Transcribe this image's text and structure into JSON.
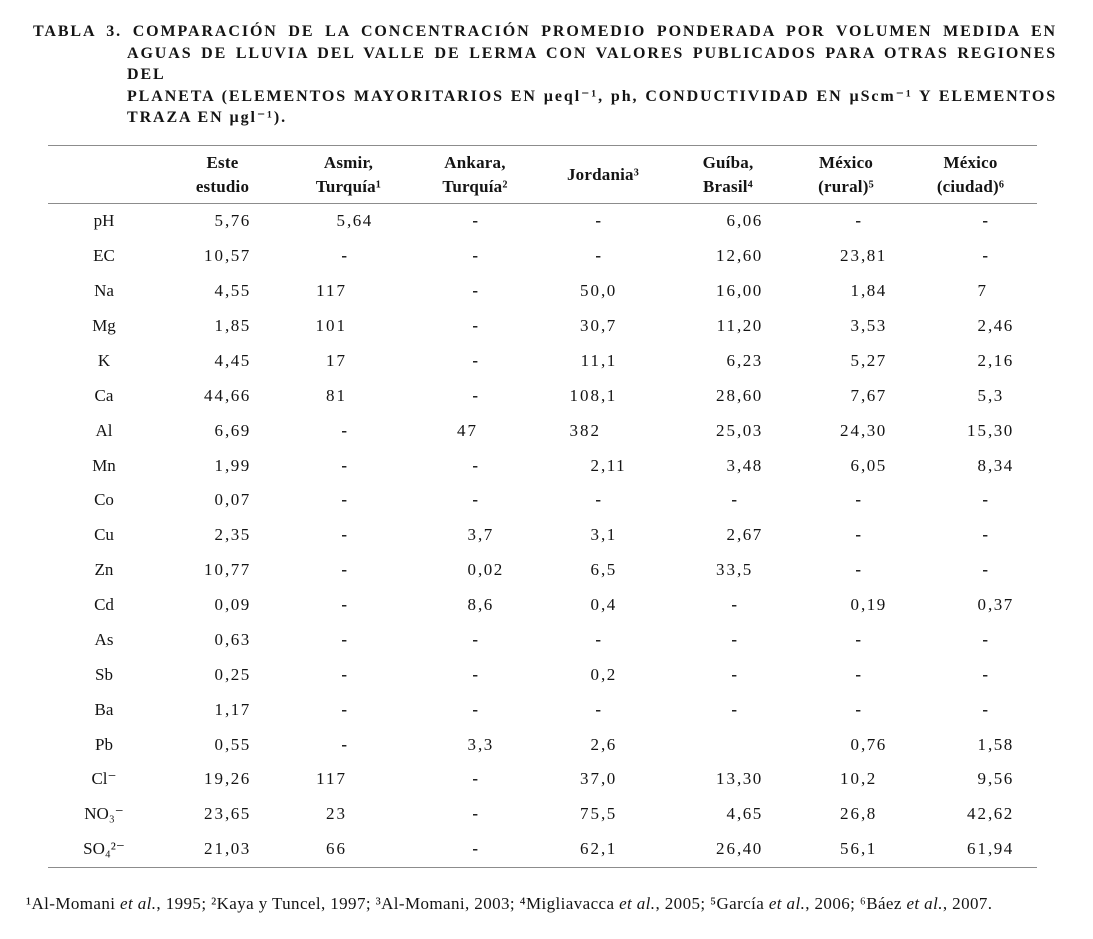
{
  "title": {
    "lines": [
      "TABLA 3. COMPARACIÓN DE LA CONCENTRACIÓN PROMEDIO PONDERADA POR VOLUMEN MEDIDA EN",
      "AGUAS DE LLUVIA DEL VALLE DE LERMA CON VALORES PUBLICADOS PARA OTRAS REGIONES DEL",
      "PLANETA (ELEMENTOS MAYORITARIOS EN µeql⁻¹, ph, CONDUCTIVIDAD EN µScm⁻¹ Y ELEMENTOS",
      "TRAZA EN µgl⁻¹)."
    ]
  },
  "table": {
    "columns": [
      {
        "lines": [
          "Este",
          "estudio"
        ]
      },
      {
        "lines": [
          "Asmir,",
          "Turquía¹"
        ]
      },
      {
        "lines": [
          "Ankara,",
          "Turquía²"
        ]
      },
      {
        "lines": [
          "Jordania³"
        ]
      },
      {
        "lines": [
          "Guíba,",
          "Brasil⁴"
        ]
      },
      {
        "lines": [
          "México",
          "(rural)⁵"
        ]
      },
      {
        "lines": [
          "México",
          "(ciudad)⁶"
        ]
      }
    ],
    "rows": [
      {
        "label": "pH",
        "values": [
          "5,76",
          "5,64",
          "-",
          "-",
          "6,06",
          "-",
          "-"
        ]
      },
      {
        "label": "EC",
        "values": [
          "10,57",
          "-",
          "-",
          "-",
          "12,60",
          "23,81",
          "-"
        ]
      },
      {
        "label": "Na",
        "values": [
          "4,55",
          "117",
          "-",
          "50,0",
          "16,00",
          "1,84",
          "7"
        ]
      },
      {
        "label": "Mg",
        "values": [
          "1,85",
          "101",
          "-",
          "30,7",
          "11,20",
          "3,53",
          "2,46"
        ]
      },
      {
        "label": "K",
        "values": [
          "4,45",
          "17",
          "-",
          "11,1",
          "6,23",
          "5,27",
          "2,16"
        ]
      },
      {
        "label": "Ca",
        "values": [
          "44,66",
          "81",
          "-",
          "108,1",
          "28,60",
          "7,67",
          "5,3"
        ]
      },
      {
        "label": "Al",
        "values": [
          "6,69",
          "-",
          "47",
          "382",
          "25,03",
          "24,30",
          "15,30"
        ]
      },
      {
        "label": "Mn",
        "values": [
          "1,99",
          "-",
          "-",
          "2,11",
          "3,48",
          "6,05",
          "8,34"
        ]
      },
      {
        "label": "Co",
        "values": [
          "0,07",
          "-",
          "-",
          "-",
          "-",
          "-",
          "-"
        ]
      },
      {
        "label": "Cu",
        "values": [
          "2,35",
          "-",
          "3,7",
          "3,1",
          "2,67",
          "-",
          "-"
        ]
      },
      {
        "label": "Zn",
        "values": [
          "10,77",
          "-",
          "0,02",
          "6,5",
          "33,5",
          "-",
          "-"
        ]
      },
      {
        "label": "Cd",
        "values": [
          "0,09",
          "-",
          "8,6",
          "0,4",
          "-",
          "0,19",
          "0,37"
        ]
      },
      {
        "label": "As",
        "values": [
          "0,63",
          "-",
          "-",
          "-",
          "-",
          "-",
          "-"
        ]
      },
      {
        "label": "Sb",
        "values": [
          "0,25",
          "-",
          "-",
          "0,2",
          "-",
          "-",
          "-"
        ]
      },
      {
        "label": "Ba",
        "values": [
          "1,17",
          "-",
          "-",
          "-",
          "-",
          "-",
          "-"
        ]
      },
      {
        "label": "Pb",
        "values": [
          "0,55",
          "-",
          "3,3",
          "2,6",
          "",
          "0,76",
          "1,58"
        ]
      },
      {
        "label": "Cl⁻",
        "values": [
          "19,26",
          "117",
          "-",
          "37,0",
          "13,30",
          "10,2",
          "9,56"
        ]
      },
      {
        "label": "NO₃⁻",
        "values": [
          "23,65",
          "23",
          "-",
          "75,5",
          "4,65",
          "26,8",
          "42,62"
        ]
      },
      {
        "label": "SO₄²⁻",
        "values": [
          "21,03",
          "66",
          "-",
          "62,1",
          "26,40",
          "56,1",
          "61,94"
        ]
      }
    ]
  },
  "footnote": {
    "parts": [
      {
        "text": "¹Al-Momani ",
        "italic": false
      },
      {
        "text": "et al.",
        "italic": true
      },
      {
        "text": ", 1995; ²Kaya y Tuncel, 1997; ³Al-Momani, 2003; ⁴Migliavacca ",
        "italic": false
      },
      {
        "text": "et al.",
        "italic": true
      },
      {
        "text": ", 2005; ⁵García ",
        "italic": false
      },
      {
        "text": "et al.",
        "italic": true
      },
      {
        "text": ", 2006; ⁶Báez ",
        "italic": false
      },
      {
        "text": "et al.",
        "italic": true
      },
      {
        "text": ", 2007.",
        "italic": false
      }
    ]
  },
  "colors": {
    "text": "#141414",
    "rule": "#8c8c8c",
    "background": "#ffffff"
  }
}
